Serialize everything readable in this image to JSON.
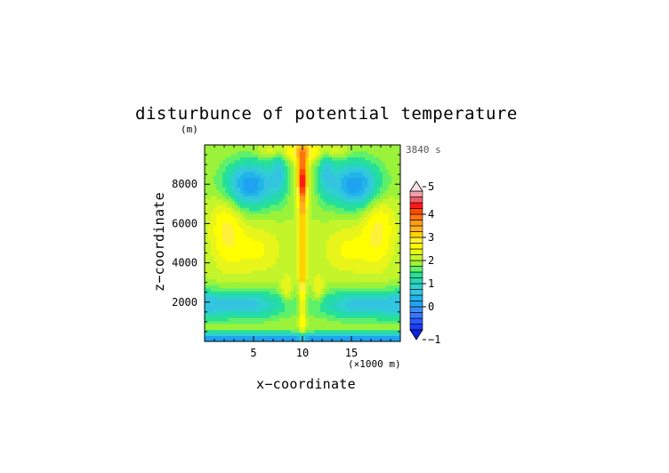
{
  "chart_data": {
    "type": "heatmap",
    "title": "disturbunce of potential temperature",
    "time_label": "3840 s",
    "y_unit": "(m)",
    "x_unit": "(×1000 m)",
    "xlabel": "x−coordinate",
    "ylabel": "z−coordinate",
    "xlim": [
      0,
      20
    ],
    "ylim": [
      0,
      10000
    ],
    "x_ticks": [
      {
        "value": 5,
        "label": "5"
      },
      {
        "value": 10,
        "label": "10"
      },
      {
        "value": 15,
        "label": "15"
      }
    ],
    "y_ticks": [
      {
        "value": 2000,
        "label": "2000"
      },
      {
        "value": 4000,
        "label": "4000"
      },
      {
        "value": 6000,
        "label": "6000"
      },
      {
        "value": 8000,
        "label": "8000"
      }
    ],
    "colorbar": {
      "min": -1,
      "max": 5,
      "step": 0.25,
      "tick_values": [
        -1,
        0,
        1,
        2,
        3,
        4,
        5
      ],
      "tick_labels": [
        "−1",
        "0",
        "1",
        "2",
        "3",
        "4",
        "5"
      ],
      "extend": "both"
    },
    "field_features": [
      {
        "feature": "central plume",
        "x": 10,
        "z_range": [
          500,
          9500
        ],
        "max_value": 4.5
      },
      {
        "feature": "lower side bands",
        "z": 1800,
        "value": 0.5
      },
      {
        "feature": "surface layer",
        "z": 200,
        "value": 0
      },
      {
        "feature": "mid-level lobes",
        "x": [
          5,
          15
        ],
        "z": 4500,
        "value": 2.5
      },
      {
        "feature": "upper lobes",
        "x": [
          4,
          16
        ],
        "z": 8000,
        "value": 0
      }
    ]
  }
}
